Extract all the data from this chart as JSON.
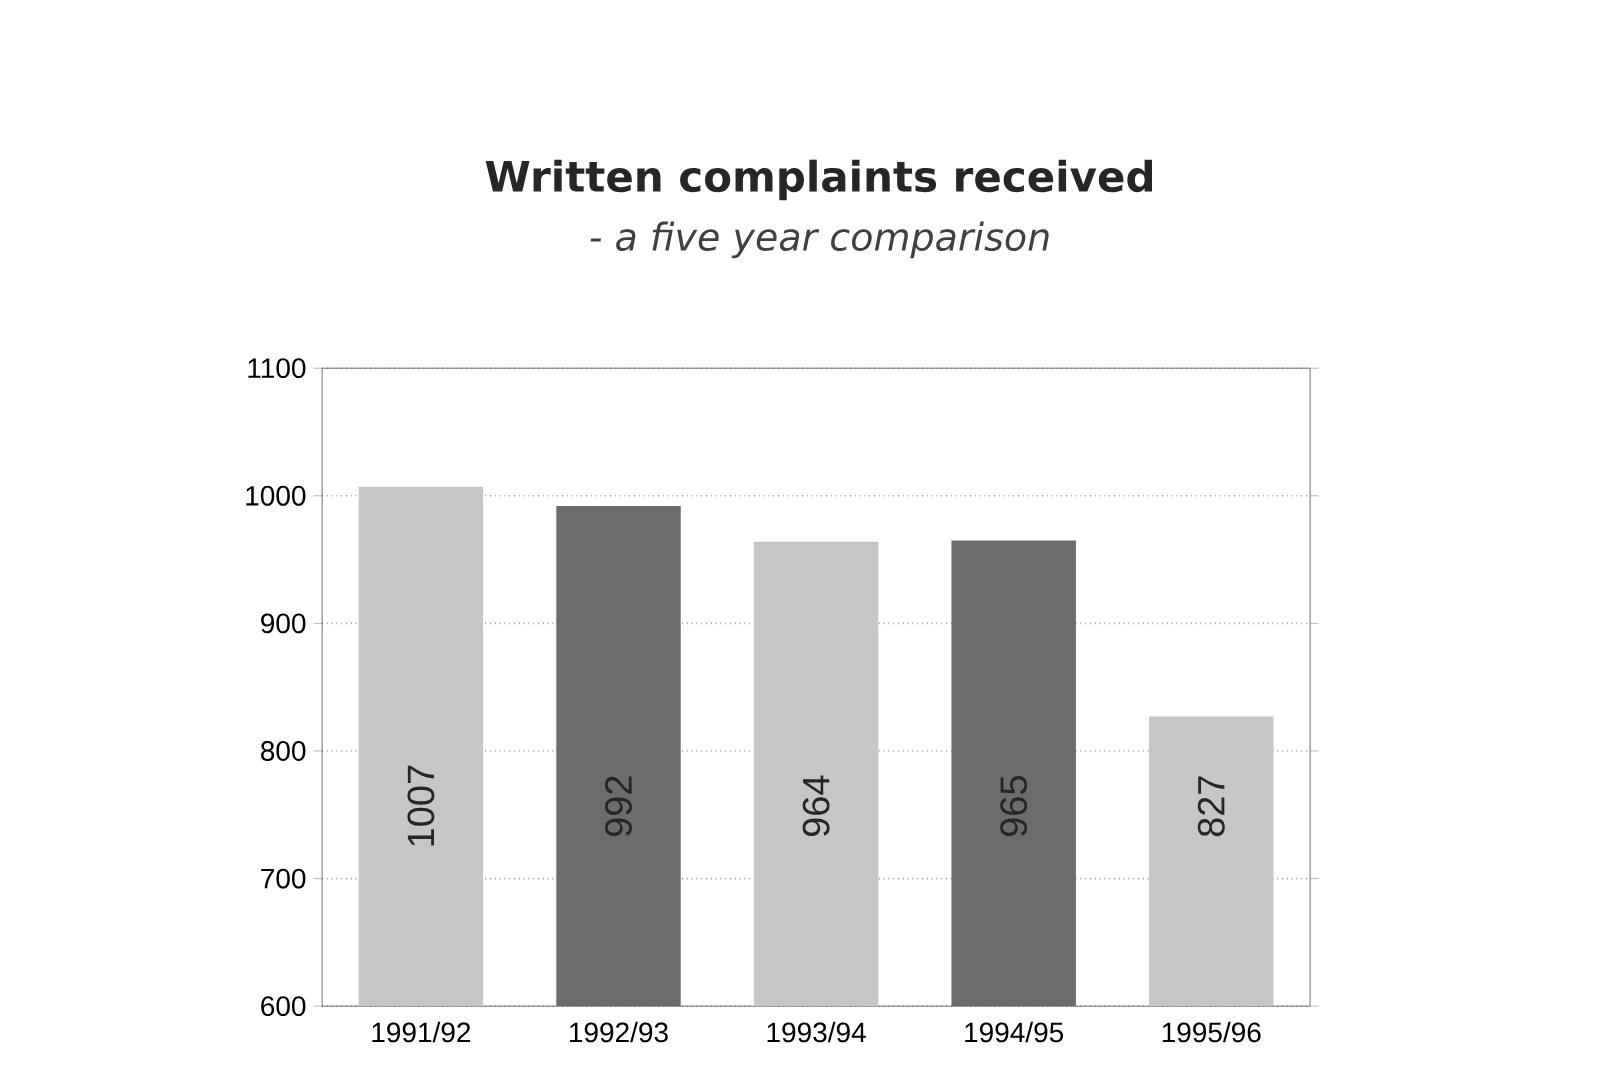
{
  "chart_data": {
    "type": "bar",
    "title": "Written complaints received",
    "subtitle": "- a five year comparison",
    "categories": [
      "1991/92",
      "1992/93",
      "1993/94",
      "1994/95",
      "1995/96"
    ],
    "values": [
      1007,
      992,
      964,
      965,
      827
    ],
    "colors": [
      "#c6c6c6",
      "#6c6c6c",
      "#c6c6c6",
      "#6c6c6c",
      "#c6c6c6"
    ],
    "ylim": [
      600,
      1100
    ],
    "yticks": [
      600,
      700,
      800,
      900,
      1000,
      1100
    ],
    "grid": "y",
    "data_labels": true
  }
}
